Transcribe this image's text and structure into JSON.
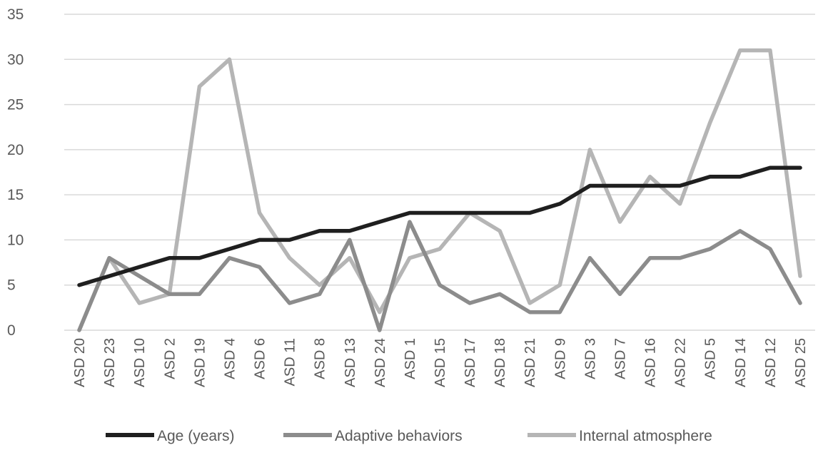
{
  "chart_data": {
    "type": "line",
    "title": "",
    "xlabel": "",
    "ylabel": "",
    "categories": [
      "ASD 20",
      "ASD 23",
      "ASD 10",
      "ASD 2",
      "ASD 19",
      "ASD 4",
      "ASD 6",
      "ASD 11",
      "ASD 8",
      "ASD 13",
      "ASD 24",
      "ASD 1",
      "ASD 15",
      "ASD 17",
      "ASD 18",
      "ASD 21",
      "ASD 9",
      "ASD 3",
      "ASD 7",
      "ASD 16",
      "ASD 22",
      "ASD 5",
      "ASD 14",
      "ASD 12",
      "ASD 25"
    ],
    "ylim": [
      0,
      35
    ],
    "yticks": [
      0,
      5,
      10,
      15,
      20,
      25,
      30,
      35
    ],
    "grid": true,
    "legend_position": "bottom",
    "series": [
      {
        "name": "Age (years)",
        "color": "#1f1f1f",
        "values": [
          5,
          6,
          7,
          8,
          8,
          9,
          10,
          10,
          11,
          11,
          12,
          13,
          13,
          13,
          13,
          13,
          14,
          16,
          16,
          16,
          16,
          17,
          17,
          18,
          18
        ]
      },
      {
        "name": "Adaptive behaviors",
        "color": "#8c8c8c",
        "values": [
          0,
          8,
          6,
          4,
          4,
          8,
          7,
          3,
          4,
          10,
          0,
          12,
          5,
          3,
          4,
          2,
          2,
          8,
          4,
          8,
          8,
          9,
          11,
          9,
          3
        ]
      },
      {
        "name": "Internal atmosphere",
        "color": "#b5b5b5",
        "values": [
          0,
          8,
          3,
          4,
          27,
          30,
          13,
          8,
          5,
          8,
          2,
          8,
          9,
          13,
          11,
          3,
          5,
          20,
          12,
          17,
          14,
          23,
          31,
          31,
          6
        ]
      }
    ]
  }
}
